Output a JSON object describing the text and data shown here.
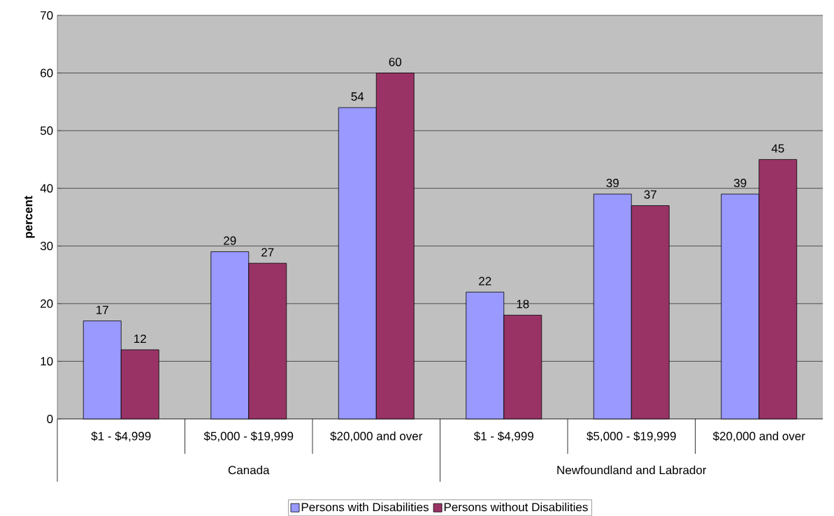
{
  "chart_data": {
    "type": "bar",
    "ylabel": "percent",
    "categories": [
      "$1 - $4,999",
      "$5,000 - $19,999",
      "$20,000 and over",
      "$1 - $4,999",
      "$5,000 - $19,999",
      "$20,000 and over"
    ],
    "series": [
      {
        "name": "Persons with Disabilities",
        "color": "#9999ff",
        "values": [
          17,
          29,
          54,
          22,
          39,
          39
        ]
      },
      {
        "name": "Persons without Disabilities",
        "color": "#993366",
        "values": [
          12,
          27,
          60,
          18,
          37,
          45
        ]
      }
    ],
    "annotations": [
      "Canada",
      "Newfoundland and Labrador"
    ],
    "ylim": [
      0,
      70
    ],
    "yticks": [
      0,
      10,
      20,
      30,
      40,
      50,
      60,
      70
    ],
    "grid": "y",
    "legend": "bottom",
    "data_labels": true
  }
}
